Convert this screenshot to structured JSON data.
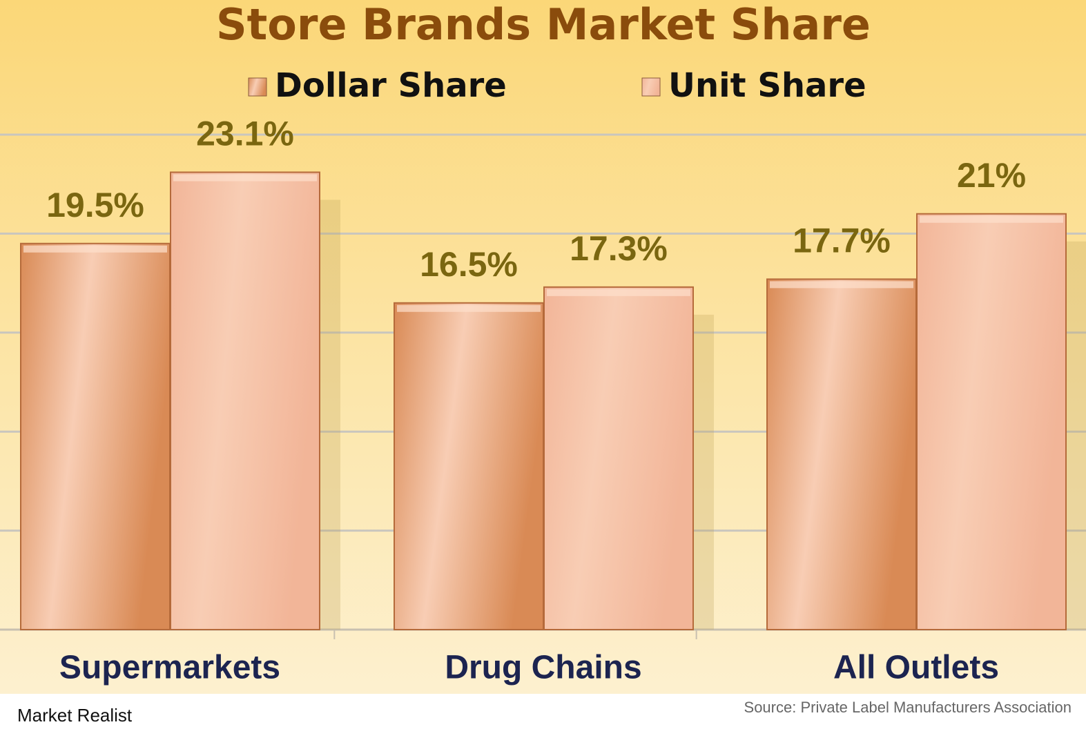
{
  "chart_data": {
    "type": "bar",
    "title": "Store Brands Market Share",
    "categories": [
      "Supermarkets",
      "Drug Chains",
      "All Outlets"
    ],
    "series": [
      {
        "name": "Dollar Share",
        "color": "#d98a55",
        "values": [
          19.5,
          16.5,
          17.7
        ],
        "value_labels": [
          "19.5%",
          "16.5%",
          "17.7%"
        ]
      },
      {
        "name": "Unit Share",
        "color": "#f2b598",
        "values": [
          23.1,
          17.3,
          21
        ],
        "value_labels": [
          "23.1%",
          "17.3%",
          "21%"
        ]
      }
    ],
    "ylim": [
      0,
      25
    ],
    "yticks": [
      0,
      5,
      10,
      15,
      20,
      25
    ],
    "grid": true,
    "legend": "top"
  },
  "footer": {
    "brand": "Market Realist",
    "source": "Source: Private Label Manufacturers Association"
  }
}
